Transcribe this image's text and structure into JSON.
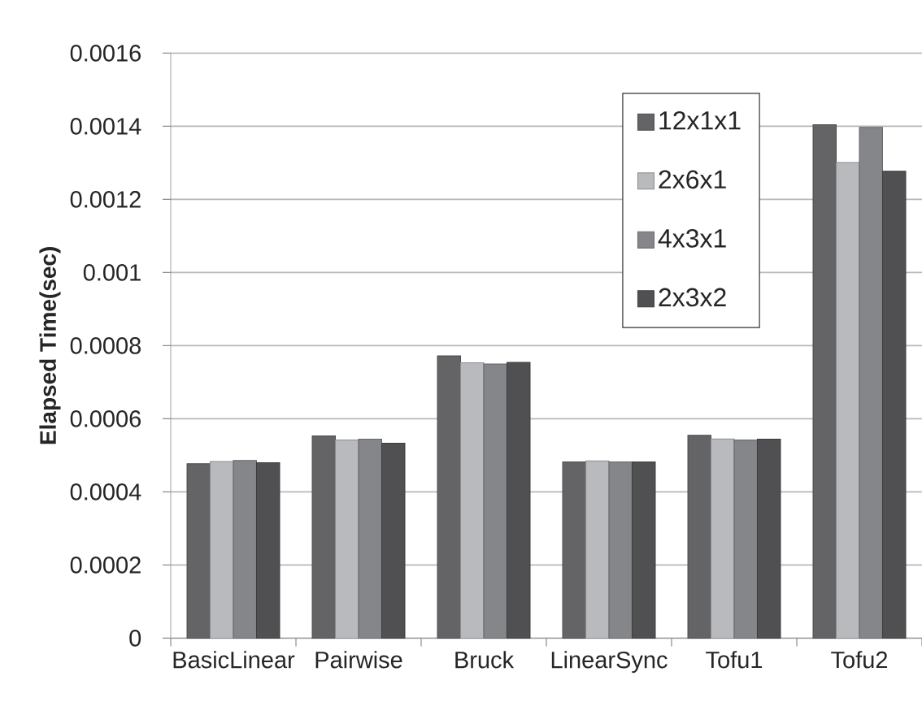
{
  "chart_data": {
    "type": "bar",
    "ylabel": "Elapsed Time(sec)",
    "categories": [
      "BasicLinear",
      "Pairwise",
      "Bruck",
      "LinearSync",
      "Tofu1",
      "Tofu2"
    ],
    "series": [
      {
        "name": "12x1x1",
        "color": "#646466",
        "values": [
          0.000477,
          0.000553,
          0.000772,
          0.000482,
          0.000555,
          0.001404
        ]
      },
      {
        "name": "2x6x1",
        "color": "#b9babd",
        "values": [
          0.000483,
          0.000542,
          0.000753,
          0.000485,
          0.000545,
          0.001301
        ]
      },
      {
        "name": "4x3x1",
        "color": "#85868a",
        "values": [
          0.000486,
          0.000544,
          0.00075,
          0.000482,
          0.000542,
          0.001397
        ]
      },
      {
        "name": "2x3x2",
        "color": "#505052",
        "values": [
          0.00048,
          0.000533,
          0.000754,
          0.000482,
          0.000544,
          0.001277
        ]
      }
    ],
    "ylim": [
      0,
      0.0016
    ],
    "yticks": [
      0,
      0.0002,
      0.0004,
      0.0006,
      0.0008,
      0.001,
      0.0012,
      0.0014,
      0.0016
    ],
    "grid": "y",
    "legend": "top right"
  }
}
